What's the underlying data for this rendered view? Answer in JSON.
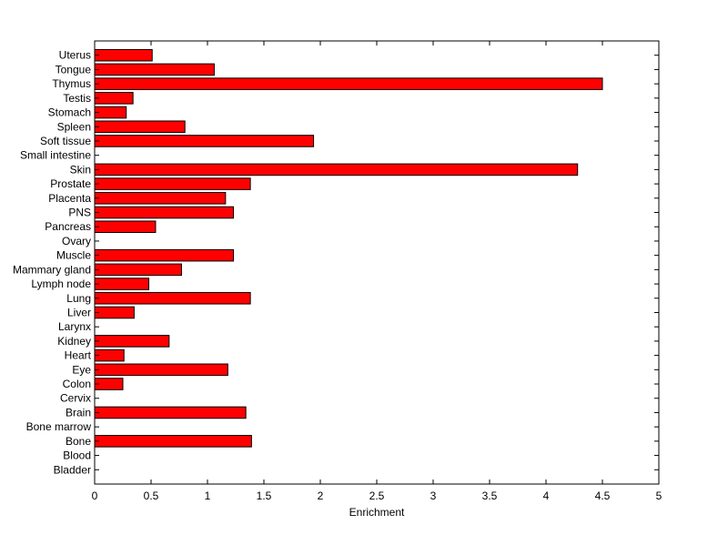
{
  "chart_data": {
    "type": "bar",
    "orientation": "horizontal",
    "title": "",
    "xlabel": "Enrichment",
    "ylabel": "",
    "xlim": [
      0,
      5
    ],
    "xticks": [
      0,
      0.5,
      1,
      1.5,
      2,
      2.5,
      3,
      3.5,
      4,
      4.5,
      5
    ],
    "xtick_labels": [
      "0",
      "0.5",
      "1",
      "1.5",
      "2",
      "2.5",
      "3",
      "3.5",
      "4",
      "4.5",
      "5"
    ],
    "grid": false,
    "legend": "none",
    "bar_color": "#ff0000",
    "categories": [
      "Bladder",
      "Blood",
      "Bone",
      "Bone marrow",
      "Brain",
      "Cervix",
      "Colon",
      "Eye",
      "Heart",
      "Kidney",
      "Larynx",
      "Liver",
      "Lung",
      "Lymph node",
      "Mammary gland",
      "Muscle",
      "Ovary",
      "Pancreas",
      "PNS",
      "Placenta",
      "Prostate",
      "Skin",
      "Small intestine",
      "Soft tissue",
      "Spleen",
      "Stomach",
      "Testis",
      "Thymus",
      "Tongue",
      "Uterus"
    ],
    "values": [
      0,
      0,
      1.39,
      0,
      1.34,
      0,
      0.25,
      1.18,
      0.26,
      0.66,
      0,
      0.35,
      1.38,
      0.48,
      0.77,
      1.23,
      0,
      0.54,
      1.23,
      1.16,
      1.38,
      4.28,
      0,
      1.94,
      0.8,
      0.28,
      0.34,
      4.5,
      1.06,
      0.51
    ]
  }
}
